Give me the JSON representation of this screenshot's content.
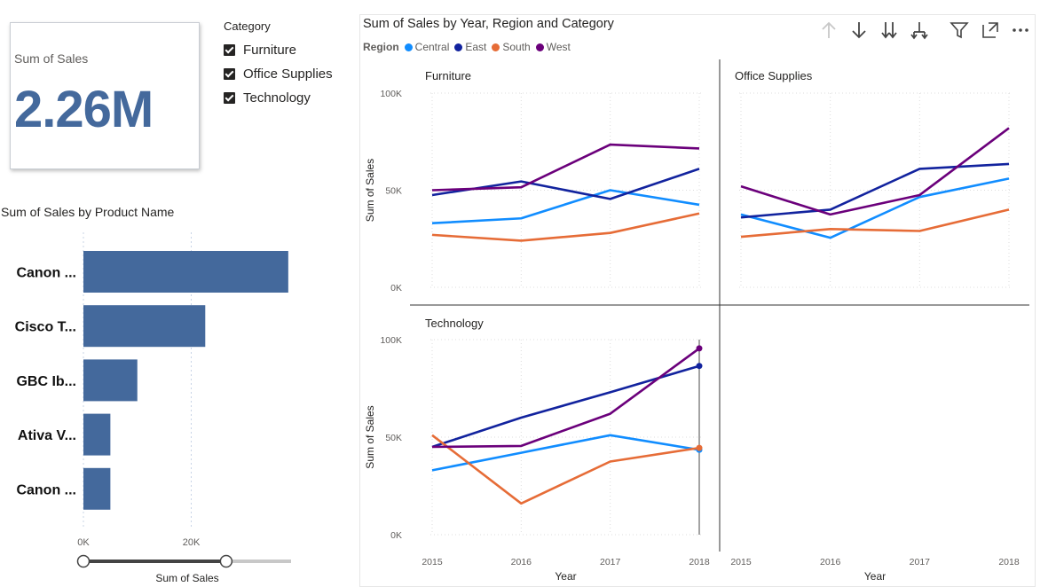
{
  "card": {
    "label": "Sum of Sales",
    "value": "2.26M"
  },
  "slicer": {
    "title": "Category",
    "items": [
      {
        "label": "Furniture",
        "checked": true
      },
      {
        "label": "Office Supplies",
        "checked": true
      },
      {
        "label": "Technology",
        "checked": true
      }
    ]
  },
  "toolbar": {
    "icons": [
      "drill-up-icon",
      "drill-down-icon",
      "expand-all-down-icon",
      "expand-hierarchy-icon",
      "filter-icon",
      "focus-mode-icon",
      "more-options-icon"
    ]
  },
  "colors": {
    "Central": "#118dff",
    "East": "#12239e",
    "South": "#e66c37",
    "West": "#6b007b",
    "bar": "#44699c"
  },
  "chart_data": [
    {
      "type": "bar",
      "orientation": "horizontal",
      "title": "Sum of Sales by Product Name",
      "categories": [
        "Canon ...",
        "Cisco T...",
        "GBC Ib...",
        "Ativa V...",
        "Canon ..."
      ],
      "values": [
        38000,
        22600,
        10000,
        5000,
        5000
      ],
      "xlabel": "Sum of Sales",
      "xticks": [
        "0K",
        "20K"
      ],
      "xlim": [
        0,
        40000
      ],
      "slider": {
        "min": 0,
        "max": 40000,
        "low": 0,
        "high": 27500
      }
    },
    {
      "type": "line",
      "title": "Sum of Sales by Year, Region and Category",
      "legend_title": "Region",
      "legend": [
        "Central",
        "East",
        "South",
        "West"
      ],
      "x": [
        "2015",
        "2016",
        "2017",
        "2018"
      ],
      "xlabel": "Year",
      "ylabel": "Sum of Sales",
      "yticks": [
        "0K",
        "50K",
        "100K"
      ],
      "ylim": [
        0,
        100000
      ],
      "panels": [
        {
          "name": "Furniture",
          "series": [
            {
              "name": "Central",
              "values": [
                33000,
                35500,
                50000,
                42500
              ]
            },
            {
              "name": "East",
              "values": [
                47500,
                54500,
                45500,
                61000
              ]
            },
            {
              "name": "South",
              "values": [
                27000,
                24000,
                28000,
                38000
              ]
            },
            {
              "name": "West",
              "values": [
                50000,
                51500,
                73500,
                71500
              ]
            }
          ]
        },
        {
          "name": "Office Supplies",
          "series": [
            {
              "name": "Central",
              "values": [
                37500,
                25500,
                46500,
                56000
              ]
            },
            {
              "name": "East",
              "values": [
                36000,
                40000,
                61000,
                63500
              ]
            },
            {
              "name": "South",
              "values": [
                26000,
                30000,
                29000,
                40000
              ]
            },
            {
              "name": "West",
              "values": [
                52000,
                37500,
                47500,
                82000
              ]
            }
          ]
        },
        {
          "name": "Technology",
          "series": [
            {
              "name": "Central",
              "values": [
                33000,
                42000,
                51000,
                43500
              ]
            },
            {
              "name": "East",
              "values": [
                45000,
                60000,
                73000,
                86500
              ]
            },
            {
              "name": "South",
              "values": [
                51000,
                16000,
                37500,
                44500
              ]
            },
            {
              "name": "West",
              "values": [
                45000,
                45500,
                62000,
                95500
              ]
            }
          ]
        }
      ]
    }
  ]
}
